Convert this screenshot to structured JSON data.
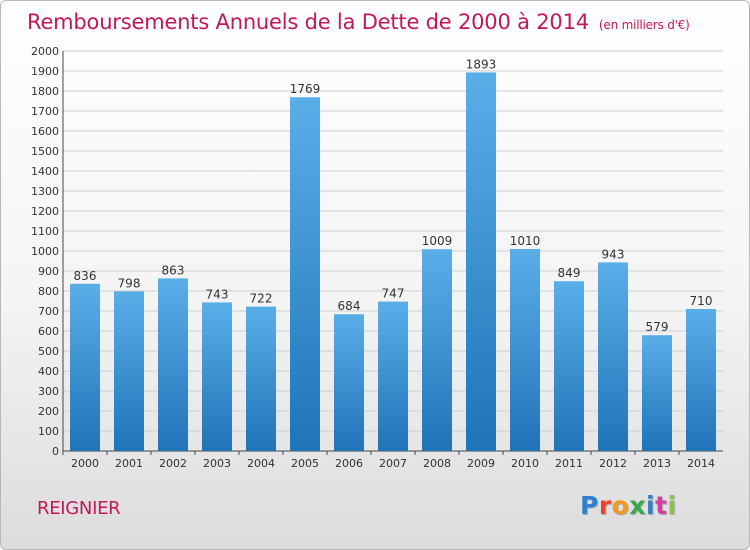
{
  "title": "Remboursements Annuels de la Dette de 2000 à 2014",
  "title_unit": "(en milliers d'€)",
  "town": "REIGNIER",
  "logo": "Proxiti",
  "colors": {
    "title": "#c2185b",
    "bar_top": "#5aaee8",
    "bar_bottom": "#1f74b8",
    "grid": "#cfcfcf"
  },
  "chart_data": {
    "type": "bar",
    "title": "Remboursements Annuels de la Dette de 2000 à 2014",
    "categories": [
      "2000",
      "2001",
      "2002",
      "2003",
      "2004",
      "2005",
      "2006",
      "2007",
      "2008",
      "2009",
      "2010",
      "2011",
      "2012",
      "2013",
      "2014"
    ],
    "values": [
      836,
      798,
      863,
      743,
      722,
      1769,
      684,
      747,
      1009,
      1893,
      1010,
      849,
      943,
      579,
      710
    ],
    "ylim": [
      0,
      2000
    ],
    "ytick_step": 100,
    "grid": true,
    "data_labels": true
  }
}
